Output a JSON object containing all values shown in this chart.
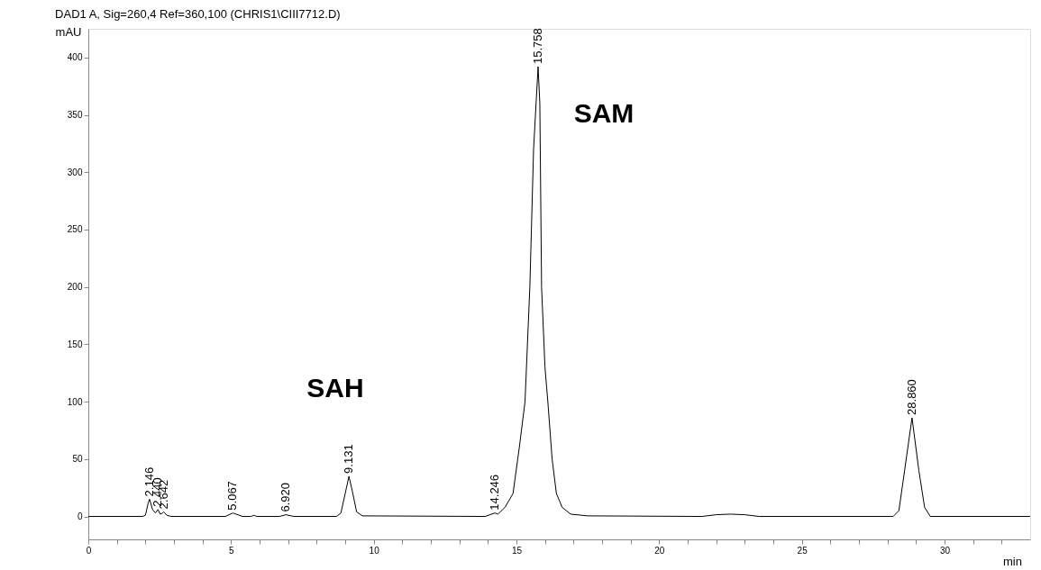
{
  "chart_data": {
    "type": "line",
    "title": "DAD1 A, Sig=260,4 Ref=360,100 (CHRIS1\\CIII7712.D)",
    "xlabel": "min",
    "ylabel": "mAU",
    "xlim": [
      0,
      33
    ],
    "ylim": [
      -20,
      425
    ],
    "xticks": [
      0,
      {
        "value": 1,
        "label": null
      },
      {
        "value": 2,
        "label": null
      },
      {
        "value": 3,
        "label": null
      },
      {
        "value": 4,
        "label": null
      },
      5,
      {
        "value": 6,
        "label": null
      },
      {
        "value": 7,
        "label": null
      },
      {
        "value": 8,
        "label": null
      },
      {
        "value": 9,
        "label": null
      },
      10,
      {
        "value": 11,
        "label": null
      },
      {
        "value": 12,
        "label": null
      },
      {
        "value": 13,
        "label": null
      },
      {
        "value": 14,
        "label": null
      },
      15,
      {
        "value": 16,
        "label": null
      },
      {
        "value": 17,
        "label": null
      },
      {
        "value": 18,
        "label": null
      },
      {
        "value": 19,
        "label": null
      },
      20,
      {
        "value": 21,
        "label": null
      },
      {
        "value": 22,
        "label": null
      },
      {
        "value": 23,
        "label": null
      },
      {
        "value": 24,
        "label": null
      },
      25,
      {
        "value": 26,
        "label": null
      },
      {
        "value": 27,
        "label": null
      },
      {
        "value": 28,
        "label": null
      },
      {
        "value": 29,
        "label": null
      },
      30,
      {
        "value": 31,
        "label": null
      },
      {
        "value": 32,
        "label": null
      }
    ],
    "yticks": [
      0,
      50,
      100,
      150,
      200,
      250,
      300,
      350,
      400
    ],
    "grid": false,
    "marker": "none",
    "line_style": "solid",
    "series": [
      {
        "color": "#000000",
        "x": [
          0,
          1.9,
          2.0,
          2.1,
          2.146,
          2.25,
          2.35,
          2.44,
          2.52,
          2.6,
          2.642,
          2.75,
          2.9,
          4.8,
          5.067,
          5.4,
          5.7,
          5.8,
          5.9,
          6.7,
          6.92,
          7.2,
          8.7,
          8.85,
          9.0,
          9.131,
          9.25,
          9.4,
          9.6,
          13.9,
          14.246,
          14.35,
          14.6,
          14.88,
          15.1,
          15.3,
          15.47,
          15.6,
          15.758,
          15.82,
          15.88,
          16.0,
          16.1,
          16.25,
          16.4,
          16.6,
          16.9,
          17.5,
          21.5,
          22.0,
          22.5,
          23.0,
          23.5,
          28.2,
          28.4,
          28.6,
          28.86,
          29.1,
          29.3,
          29.5,
          33
        ],
        "values": [
          0,
          0,
          1,
          12,
          15,
          6,
          3,
          6,
          2,
          3,
          4,
          1,
          0,
          0,
          3,
          0,
          0,
          1,
          0,
          0,
          1.5,
          0,
          0,
          3,
          20,
          35,
          22,
          4,
          0.5,
          0,
          3,
          2,
          8,
          20,
          60,
          100,
          200,
          320,
          392,
          360,
          200,
          130,
          100,
          50,
          20,
          8,
          2,
          0.5,
          0,
          1.5,
          2,
          1.5,
          0,
          0,
          5,
          40,
          86,
          40,
          8,
          0,
          0
        ]
      }
    ],
    "annotations": [
      {
        "text": "2.146",
        "x": 2.146,
        "y": 15
      },
      {
        "text": "2.440",
        "x": 2.44,
        "y": 6
      },
      {
        "text": "2.642",
        "x": 2.642,
        "y": 4
      },
      {
        "text": "5.067",
        "x": 5.067,
        "y": 3
      },
      {
        "text": "6.920",
        "x": 6.92,
        "y": 1.5
      },
      {
        "text": "9.131",
        "x": 9.131,
        "y": 35
      },
      {
        "text": "14.246",
        "x": 14.246,
        "y": 3
      },
      {
        "text": "15.758",
        "x": 15.758,
        "y": 392
      },
      {
        "text": "28.860",
        "x": 28.86,
        "y": 86
      },
      "SAH",
      "SAM"
    ]
  }
}
